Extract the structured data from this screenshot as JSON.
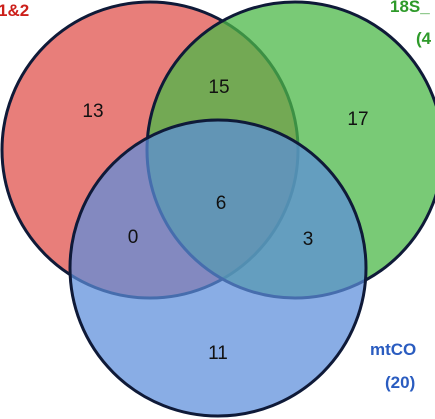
{
  "colors": {
    "set_a_fill": "#e0534d",
    "set_b_fill": "#4cb848",
    "set_c_fill": "#5b8ddb",
    "outline": "#0f1a38",
    "set_a_label": "#cc1f1a",
    "set_b_label": "#2e9a2a",
    "set_c_label": "#2a5cc0"
  },
  "labels": {
    "set_a": "1&2",
    "set_b_line1": "18S_",
    "set_b_line2": "(4",
    "set_c_line1": "mtCO",
    "set_c_line2": "(20)"
  },
  "regions": {
    "a_only": "13",
    "b_only": "17",
    "c_only": "11",
    "ab": "15",
    "ac": "0",
    "bc": "3",
    "abc": "6"
  }
}
